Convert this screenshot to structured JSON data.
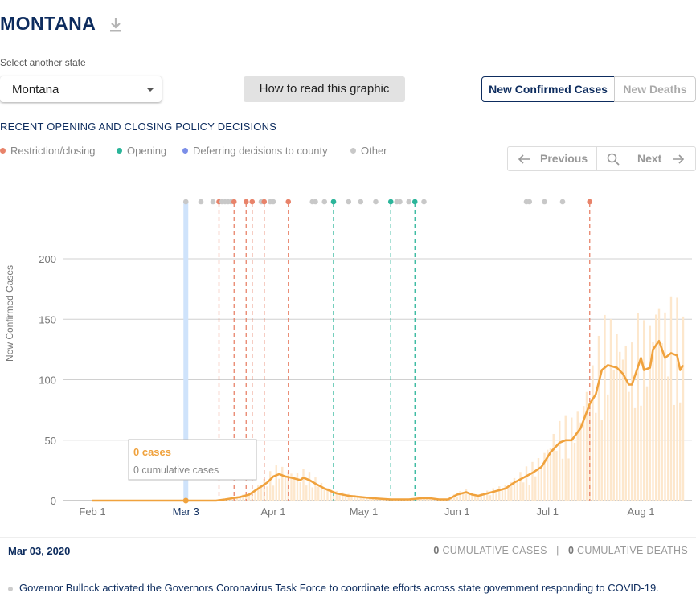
{
  "header": {
    "title": "MONTANA"
  },
  "controls": {
    "select_label": "Select another state",
    "state_value": "Montana",
    "howto_label": "How to read this graphic",
    "toggle_cases": "New Confirmed Cases",
    "toggle_deaths": "New Deaths"
  },
  "policy": {
    "section_title": "RECENT OPENING AND CLOSING POLICY DECISIONS",
    "legend": [
      {
        "label": "Restriction/closing",
        "color": "#e8836a"
      },
      {
        "label": "Opening",
        "color": "#2bb59a"
      },
      {
        "label": "Deferring decisions to county",
        "color": "#7b8ee8"
      },
      {
        "label": "Other",
        "color": "#c8c8c8"
      }
    ]
  },
  "nav": {
    "previous": "Previous",
    "next": "Next"
  },
  "tooltip": {
    "cases": "0 cases",
    "cumulative": "0 cumulative cases"
  },
  "footer": {
    "date": "Mar 03, 2020",
    "cum_cases_value": "0",
    "cum_cases_label": "CUMULATIVE CASES",
    "separator": "|",
    "cum_deaths_value": "0",
    "cum_deaths_label": "CUMULATIVE DEATHS"
  },
  "event_text": "Governor Bullock activated the Governors Coronavirus Task Force to coordinate efforts across state government responding to COVID-19.",
  "chart_data": {
    "type": "line",
    "ylabel": "New Confirmed Cases",
    "ylim": [
      0,
      200
    ],
    "yticks": [
      0,
      50,
      100,
      150,
      200
    ],
    "xticks": [
      {
        "label": "Feb 1",
        "day": 1
      },
      {
        "label": "Apr 1",
        "day": 61
      },
      {
        "label": "May 1",
        "day": 91
      },
      {
        "label": "Jun 1",
        "day": 122
      },
      {
        "label": "Jul 1",
        "day": 152
      },
      {
        "label": "Aug 1",
        "day": 183
      }
    ],
    "selected": {
      "label": "Mar 3",
      "day": 32
    },
    "colors": {
      "line": "#f0a23d",
      "bars": "#fde7cc",
      "restriction": "#e8836a",
      "opening": "#2bb59a",
      "other": "#c8c8c8",
      "selected": "#cfe3fb"
    },
    "series": [
      {
        "values": [
          [
            1,
            0
          ],
          [
            42,
            0
          ],
          [
            45,
            1
          ],
          [
            50,
            3
          ],
          [
            53,
            5
          ],
          [
            56,
            10
          ],
          [
            59,
            15
          ],
          [
            61,
            20
          ],
          [
            63,
            22
          ],
          [
            65,
            20
          ],
          [
            67,
            19
          ],
          [
            70,
            17
          ],
          [
            71,
            19
          ],
          [
            73,
            17
          ],
          [
            75,
            14
          ],
          [
            78,
            10
          ],
          [
            82,
            6
          ],
          [
            86,
            4
          ],
          [
            90,
            3
          ],
          [
            94,
            2
          ],
          [
            100,
            1
          ],
          [
            106,
            1
          ],
          [
            110,
            2
          ],
          [
            113,
            2
          ],
          [
            116,
            1
          ],
          [
            119,
            1
          ],
          [
            122,
            5
          ],
          [
            125,
            7
          ],
          [
            127,
            5
          ],
          [
            129,
            4
          ],
          [
            132,
            6
          ],
          [
            135,
            8
          ],
          [
            138,
            10
          ],
          [
            141,
            15
          ],
          [
            144,
            19
          ],
          [
            147,
            23
          ],
          [
            150,
            28
          ],
          [
            153,
            40
          ],
          [
            156,
            48
          ],
          [
            158,
            50
          ],
          [
            160,
            50
          ],
          [
            163,
            60
          ],
          [
            166,
            80
          ],
          [
            168,
            88
          ],
          [
            170,
            108
          ],
          [
            172,
            112
          ],
          [
            175,
            110
          ],
          [
            177,
            105
          ],
          [
            179,
            96
          ],
          [
            180,
            96
          ],
          [
            183,
            118
          ],
          [
            184,
            108
          ],
          [
            186,
            110
          ],
          [
            187,
            125
          ],
          [
            189,
            132
          ],
          [
            191,
            118
          ],
          [
            193,
            122
          ],
          [
            195,
            120
          ],
          [
            196,
            108
          ],
          [
            197,
            112
          ]
        ]
      }
    ],
    "policy_markers": [
      {
        "day": 32,
        "type": "other"
      },
      {
        "day": 37,
        "type": "other"
      },
      {
        "day": 41,
        "type": "other"
      },
      {
        "day": 43,
        "type": "restriction",
        "line": true
      },
      {
        "day": 44,
        "type": "other"
      },
      {
        "day": 45,
        "type": "other"
      },
      {
        "day": 46,
        "type": "other"
      },
      {
        "day": 47,
        "type": "other"
      },
      {
        "day": 48,
        "type": "restriction",
        "line": true
      },
      {
        "day": 52,
        "type": "restriction",
        "line": true
      },
      {
        "day": 54,
        "type": "restriction",
        "line": true
      },
      {
        "day": 57,
        "type": "other"
      },
      {
        "day": 58,
        "type": "restriction",
        "line": true
      },
      {
        "day": 60,
        "type": "other"
      },
      {
        "day": 61,
        "type": "other"
      },
      {
        "day": 66,
        "type": "restriction",
        "line": true
      },
      {
        "day": 74,
        "type": "other"
      },
      {
        "day": 75,
        "type": "other"
      },
      {
        "day": 78,
        "type": "other"
      },
      {
        "day": 81,
        "type": "other"
      },
      {
        "day": 81,
        "type": "opening",
        "line": true
      },
      {
        "day": 86,
        "type": "other"
      },
      {
        "day": 90,
        "type": "other"
      },
      {
        "day": 95,
        "type": "other"
      },
      {
        "day": 100,
        "type": "opening",
        "line": true
      },
      {
        "day": 102,
        "type": "other"
      },
      {
        "day": 103,
        "type": "other"
      },
      {
        "day": 106,
        "type": "other"
      },
      {
        "day": 108,
        "type": "opening",
        "line": true
      },
      {
        "day": 111,
        "type": "other"
      },
      {
        "day": 145,
        "type": "other"
      },
      {
        "day": 146,
        "type": "other"
      },
      {
        "day": 151,
        "type": "other"
      },
      {
        "day": 157,
        "type": "other"
      },
      {
        "day": 166,
        "type": "restriction",
        "line": true
      }
    ]
  }
}
